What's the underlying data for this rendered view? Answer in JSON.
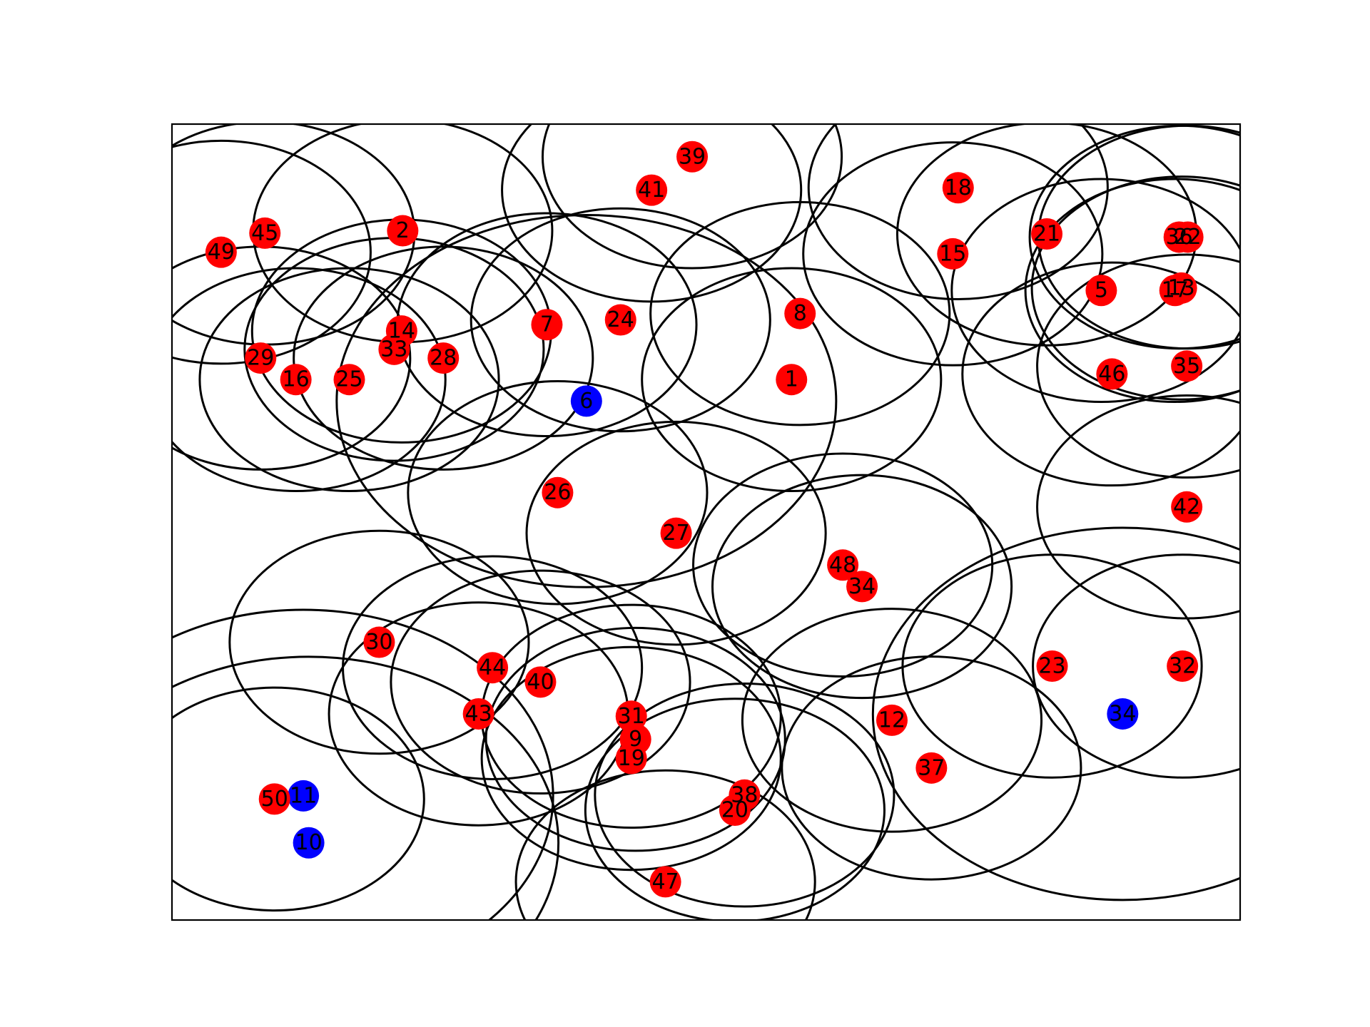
{
  "chart_data": {
    "type": "scatter",
    "title": "",
    "xlabel": "",
    "ylabel": "",
    "axes_visible": false,
    "grid": false,
    "xlim": [
      0,
      100
    ],
    "ylim": [
      0,
      100
    ],
    "circle_radius_x": 14,
    "circle_radius_y": 14,
    "colors": {
      "red": "#ff0000",
      "blue": "#0000ff",
      "circle": "#000000",
      "frame": "#000000"
    },
    "points": [
      {
        "label": "1",
        "x": 58.0,
        "y": 67.9,
        "color": "red",
        "circle_scale": 1.0
      },
      {
        "label": "2",
        "x": 21.6,
        "y": 86.6,
        "color": "red",
        "circle_scale": 1.0
      },
      {
        "label": "5",
        "x": 87.0,
        "y": 79.1,
        "color": "red",
        "circle_scale": 1.0
      },
      {
        "label": "6",
        "x": 38.8,
        "y": 65.2,
        "color": "blue",
        "circle_scale": 1.67
      },
      {
        "label": "7",
        "x": 35.1,
        "y": 74.8,
        "color": "red",
        "circle_scale": 1.0
      },
      {
        "label": "8",
        "x": 58.8,
        "y": 76.2,
        "color": "red",
        "circle_scale": 1.0
      },
      {
        "label": "9",
        "x": 43.4,
        "y": 22.7,
        "color": "red",
        "circle_scale": 1.0
      },
      {
        "label": "10",
        "x": 12.8,
        "y": 9.7,
        "color": "blue",
        "circle_scale": 1.67
      },
      {
        "label": "11",
        "x": 12.3,
        "y": 15.6,
        "color": "blue",
        "circle_scale": 1.67
      },
      {
        "label": "12",
        "x": 67.4,
        "y": 25.1,
        "color": "red",
        "circle_scale": 1.0
      },
      {
        "label": "13",
        "x": 94.5,
        "y": 79.4,
        "color": "red",
        "circle_scale": 1.0
      },
      {
        "label": "14",
        "x": 21.5,
        "y": 74.0,
        "color": "red",
        "circle_scale": 1.0
      },
      {
        "label": "15",
        "x": 73.1,
        "y": 83.7,
        "color": "red",
        "circle_scale": 1.0
      },
      {
        "label": "16",
        "x": 11.6,
        "y": 67.9,
        "color": "red",
        "circle_scale": 1.0
      },
      {
        "label": "17",
        "x": 93.9,
        "y": 79.1,
        "color": "red",
        "circle_scale": 1.0
      },
      {
        "label": "18",
        "x": 73.6,
        "y": 92.0,
        "color": "red",
        "circle_scale": 1.0
      },
      {
        "label": "19",
        "x": 43.0,
        "y": 20.3,
        "color": "red",
        "circle_scale": 1.0
      },
      {
        "label": "20",
        "x": 52.7,
        "y": 13.8,
        "color": "red",
        "circle_scale": 1.0
      },
      {
        "label": "21",
        "x": 81.9,
        "y": 86.2,
        "color": "red",
        "circle_scale": 1.0
      },
      {
        "label": "22",
        "x": 95.1,
        "y": 85.8,
        "color": "red",
        "circle_scale": 1.0
      },
      {
        "label": "23",
        "x": 82.4,
        "y": 31.9,
        "color": "red",
        "circle_scale": 1.0
      },
      {
        "label": "24",
        "x": 42.0,
        "y": 75.4,
        "color": "red",
        "circle_scale": 1.0
      },
      {
        "label": "25",
        "x": 16.6,
        "y": 67.9,
        "color": "red",
        "circle_scale": 1.0
      },
      {
        "label": "26",
        "x": 36.1,
        "y": 53.7,
        "color": "red",
        "circle_scale": 1.0
      },
      {
        "label": "27",
        "x": 47.2,
        "y": 48.6,
        "color": "red",
        "circle_scale": 1.0
      },
      {
        "label": "28",
        "x": 25.4,
        "y": 70.6,
        "color": "red",
        "circle_scale": 1.0
      },
      {
        "label": "29",
        "x": 8.3,
        "y": 70.6,
        "color": "red",
        "circle_scale": 1.0
      },
      {
        "label": "30",
        "x": 19.4,
        "y": 34.9,
        "color": "red",
        "circle_scale": 1.0
      },
      {
        "label": "31",
        "x": 43.0,
        "y": 25.6,
        "color": "red",
        "circle_scale": 1.0
      },
      {
        "label": "32",
        "x": 94.6,
        "y": 31.9,
        "color": "red",
        "circle_scale": 1.0
      },
      {
        "label": "33",
        "x": 20.8,
        "y": 71.7,
        "color": "red",
        "circle_scale": 1.0
      },
      {
        "label": "34",
        "x": 64.6,
        "y": 41.9,
        "color": "red",
        "circle_scale": 1.0
      },
      {
        "label": "34",
        "x": 89.0,
        "y": 25.9,
        "color": "blue",
        "circle_scale": 1.67
      },
      {
        "label": "35",
        "x": 95.0,
        "y": 69.6,
        "color": "red",
        "circle_scale": 1.0
      },
      {
        "label": "36",
        "x": 94.3,
        "y": 85.8,
        "color": "red",
        "circle_scale": 1.0
      },
      {
        "label": "37",
        "x": 71.1,
        "y": 19.1,
        "color": "red",
        "circle_scale": 1.0
      },
      {
        "label": "38",
        "x": 53.6,
        "y": 15.7,
        "color": "red",
        "circle_scale": 1.0
      },
      {
        "label": "39",
        "x": 48.7,
        "y": 95.9,
        "color": "red",
        "circle_scale": 1.0
      },
      {
        "label": "40",
        "x": 34.5,
        "y": 29.9,
        "color": "red",
        "circle_scale": 1.0
      },
      {
        "label": "41",
        "x": 44.9,
        "y": 91.7,
        "color": "red",
        "circle_scale": 1.0
      },
      {
        "label": "42",
        "x": 95.0,
        "y": 51.9,
        "color": "red",
        "circle_scale": 1.0
      },
      {
        "label": "43",
        "x": 28.7,
        "y": 25.9,
        "color": "red",
        "circle_scale": 1.0
      },
      {
        "label": "44",
        "x": 30.0,
        "y": 31.7,
        "color": "red",
        "circle_scale": 1.0
      },
      {
        "label": "45",
        "x": 8.7,
        "y": 86.3,
        "color": "red",
        "circle_scale": 1.0
      },
      {
        "label": "46",
        "x": 88.0,
        "y": 68.6,
        "color": "red",
        "circle_scale": 1.0
      },
      {
        "label": "47",
        "x": 46.2,
        "y": 4.8,
        "color": "red",
        "circle_scale": 1.0
      },
      {
        "label": "48",
        "x": 62.8,
        "y": 44.6,
        "color": "red",
        "circle_scale": 1.0
      },
      {
        "label": "49",
        "x": 4.6,
        "y": 83.9,
        "color": "red",
        "circle_scale": 1.0
      },
      {
        "label": "50",
        "x": 9.6,
        "y": 15.2,
        "color": "red",
        "circle_scale": 1.0
      }
    ]
  }
}
